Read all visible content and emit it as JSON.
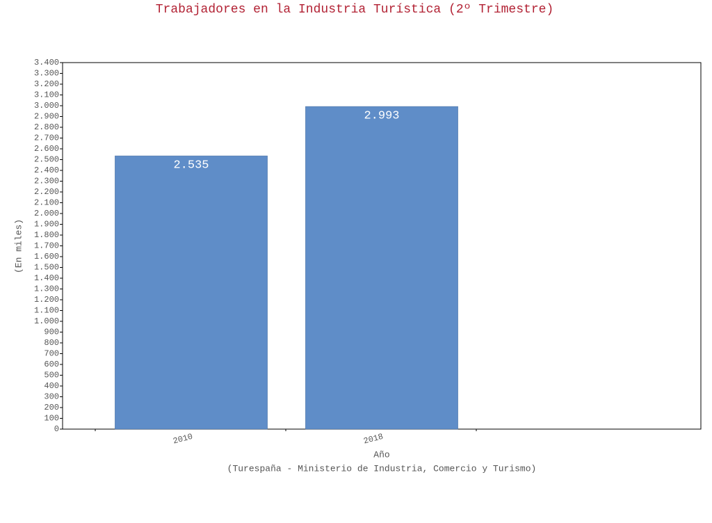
{
  "chart_data": {
    "type": "bar",
    "title": "Trabajadores en la Industria Turística (2º Trimestre)",
    "y_label": "(En miles)",
    "x_label": "Año",
    "source": "(Turespaña - Ministerio de Industria, Comercio y Turismo)",
    "categories": [
      "2010",
      "2018"
    ],
    "values": [
      2535,
      2993
    ],
    "value_labels": [
      "2.535",
      "2.993"
    ],
    "color": "#5f8dc8",
    "ylim": [
      0,
      3400
    ],
    "yticks": [
      0,
      100,
      200,
      300,
      400,
      500,
      600,
      700,
      800,
      900,
      {
        "value": 1000,
        "label": "1.000"
      },
      {
        "value": 1100,
        "label": "1.100"
      },
      {
        "value": 1200,
        "label": "1.200"
      },
      {
        "value": 1300,
        "label": "1.300"
      },
      {
        "value": 1400,
        "label": "1.400"
      },
      {
        "value": 1500,
        "label": "1.500"
      },
      {
        "value": 1600,
        "label": "1.600"
      },
      {
        "value": 1700,
        "label": "1.700"
      },
      {
        "value": 1800,
        "label": "1.800"
      },
      {
        "value": 1900,
        "label": "1.900"
      },
      {
        "value": 2000,
        "label": "2.000"
      },
      {
        "value": 2100,
        "label": "2.100"
      },
      {
        "value": 2200,
        "label": "2.200"
      },
      {
        "value": 2300,
        "label": "2.300"
      },
      {
        "value": 2400,
        "label": "2.400"
      },
      {
        "value": 2500,
        "label": "2.500"
      },
      {
        "value": 2600,
        "label": "2.600"
      },
      {
        "value": 2700,
        "label": "2.700"
      },
      {
        "value": 2800,
        "label": "2.800"
      },
      {
        "value": 2900,
        "label": "2.900"
      },
      {
        "value": 3000,
        "label": "3.000"
      },
      {
        "value": 3100,
        "label": "3.100"
      },
      {
        "value": 3200,
        "label": "3.200"
      },
      {
        "value": 3300,
        "label": "3.300"
      },
      {
        "value": 3400,
        "label": "3.400"
      }
    ]
  }
}
